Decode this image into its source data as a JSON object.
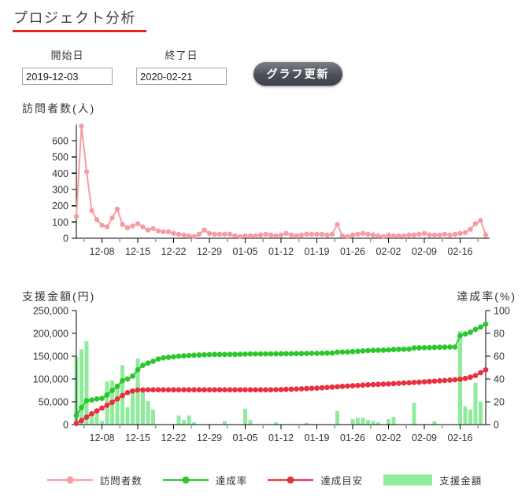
{
  "header": {
    "title": "プロジェクト分析",
    "underline_color": "#e8231d"
  },
  "controls": {
    "start_date": {
      "label": "開始日",
      "value": "2019-12-03"
    },
    "end_date": {
      "label": "終了日",
      "value": "2020-02-21"
    },
    "update_button": "グラフ更新"
  },
  "colors": {
    "visitors_line": "#f79ca3",
    "rate_line": "#2bc72b",
    "target_line": "#e93040",
    "amount_bar": "#8fec9d",
    "axis": "#000000",
    "minor_tick": "#999999"
  },
  "chart_data": [
    {
      "type": "line",
      "title": "訪問者数(人)",
      "ylabel": "人",
      "ylim": [
        0,
        700
      ],
      "yticks": [
        0,
        100,
        200,
        300,
        400,
        500,
        600
      ],
      "grid": false,
      "x_tick_indices": [
        5,
        12,
        19,
        26,
        33,
        40,
        47,
        54,
        61,
        68,
        75
      ],
      "x_tick_labels": [
        "12-08",
        "12-15",
        "12-22",
        "12-29",
        "01-05",
        "01-12",
        "01-19",
        "01-26",
        "02-02",
        "02-09",
        "02-16"
      ],
      "series": [
        {
          "name": "訪問者数",
          "color": "#f79ca3",
          "values": [
            135,
            690,
            410,
            170,
            115,
            80,
            70,
            125,
            180,
            85,
            65,
            75,
            90,
            70,
            50,
            60,
            45,
            40,
            40,
            30,
            25,
            20,
            15,
            10,
            25,
            50,
            30,
            25,
            25,
            25,
            25,
            15,
            10,
            15,
            15,
            15,
            20,
            25,
            20,
            15,
            20,
            30,
            20,
            15,
            20,
            25,
            25,
            25,
            25,
            20,
            25,
            85,
            15,
            10,
            20,
            25,
            30,
            25,
            20,
            15,
            10,
            20,
            15,
            15,
            15,
            20,
            20,
            25,
            30,
            20,
            20,
            20,
            25,
            20,
            25,
            30,
            35,
            55,
            90,
            110,
            20
          ]
        }
      ]
    },
    {
      "type": "bar",
      "title_left": "支援金額(円)",
      "title_right": "達成率(%)",
      "left_ylim": [
        0,
        250000
      ],
      "left_yticks": [
        0,
        50000,
        100000,
        150000,
        200000,
        250000
      ],
      "right_ylim": [
        0,
        100
      ],
      "right_yticks": [
        0,
        20,
        40,
        60,
        80,
        100
      ],
      "grid": false,
      "x_tick_indices": [
        5,
        12,
        19,
        26,
        33,
        40,
        47,
        54,
        61,
        68,
        75
      ],
      "x_tick_labels": [
        "12-08",
        "12-15",
        "12-22",
        "12-29",
        "01-05",
        "01-12",
        "01-19",
        "01-26",
        "02-02",
        "02-09",
        "02-16"
      ],
      "bars": {
        "name": "支援金額",
        "axis": "left",
        "color": "#8fec9d",
        "values": [
          148000,
          165000,
          183000,
          18000,
          25000,
          8000,
          95000,
          97000,
          90000,
          130000,
          38000,
          70000,
          145000,
          72000,
          52000,
          33000,
          0,
          0,
          0,
          0,
          20000,
          10000,
          20000,
          5000,
          0,
          0,
          0,
          0,
          0,
          8000,
          0,
          0,
          0,
          35000,
          10000,
          0,
          0,
          0,
          0,
          5000,
          0,
          0,
          0,
          0,
          0,
          4000,
          0,
          0,
          0,
          0,
          0,
          30000,
          0,
          0,
          12000,
          15000,
          15000,
          10000,
          8000,
          5000,
          0,
          12000,
          17000,
          0,
          0,
          0,
          48000,
          0,
          0,
          0,
          7500,
          0,
          0,
          0,
          0,
          205000,
          40000,
          33000,
          92000,
          50000,
          0
        ]
      },
      "series": [
        {
          "name": "達成目安",
          "axis": "right",
          "color": "#e93040",
          "values": [
            1,
            3.5,
            6.5,
            9.5,
            12,
            14.5,
            17,
            19.5,
            22.5,
            25.5,
            28,
            29.5,
            30.3,
            30.4,
            30.5,
            30.5,
            30.5,
            30.5,
            30.5,
            30.5,
            30.5,
            30.5,
            30.5,
            30.5,
            30.5,
            30.5,
            30.5,
            30.5,
            30.5,
            30.5,
            30.5,
            30.5,
            30.5,
            30.5,
            30.5,
            30.5,
            30.5,
            30.5,
            30.5,
            30.6,
            30.7,
            30.9,
            31,
            31.2,
            31.4,
            31.6,
            31.8,
            32,
            32.3,
            32.6,
            32.9,
            33.2,
            33.5,
            33.8,
            34.1,
            34.3,
            34.6,
            34.9,
            35.1,
            35.3,
            35.5,
            35.7,
            36,
            36.2,
            36.5,
            36.7,
            37,
            37.2,
            37.5,
            37.8,
            38.1,
            38.4,
            38.7,
            39,
            39.3,
            39.8,
            40.5,
            41.5,
            43,
            45.5,
            48
          ]
        },
        {
          "name": "達成率",
          "axis": "right",
          "color": "#2bc72b",
          "values": [
            8,
            15,
            21,
            21.5,
            22.5,
            23,
            26,
            30,
            33.5,
            38.5,
            40,
            42.5,
            48,
            52,
            54,
            55.5,
            57.5,
            58.5,
            59,
            59.5,
            60,
            60.3,
            60.6,
            60.8,
            61,
            61.2,
            61.4,
            61.5,
            61.5,
            61.5,
            61.6,
            61.6,
            61.7,
            61.8,
            62,
            62,
            62,
            62,
            62,
            62.1,
            62.1,
            62.2,
            62.2,
            62.3,
            62.3,
            62.4,
            62.5,
            62.5,
            62.6,
            62.7,
            62.8,
            63.5,
            63.6,
            63.7,
            64,
            64.3,
            64.6,
            64.9,
            65.1,
            65.2,
            65.3,
            65.5,
            65.9,
            66,
            66.1,
            66.2,
            67.2,
            67.3,
            67.4,
            67.5,
            67.7,
            67.8,
            67.9,
            68,
            68,
            78,
            79.5,
            81,
            83.5,
            85.5,
            88
          ]
        }
      ]
    }
  ],
  "legend": [
    {
      "label": "訪問者数",
      "color": "#f79ca3",
      "type": "line"
    },
    {
      "label": "達成率",
      "color": "#2bc72b",
      "type": "line"
    },
    {
      "label": "達成目安",
      "color": "#e93040",
      "type": "line"
    },
    {
      "label": "支援金額",
      "color": "#8fec9d",
      "type": "box"
    }
  ]
}
